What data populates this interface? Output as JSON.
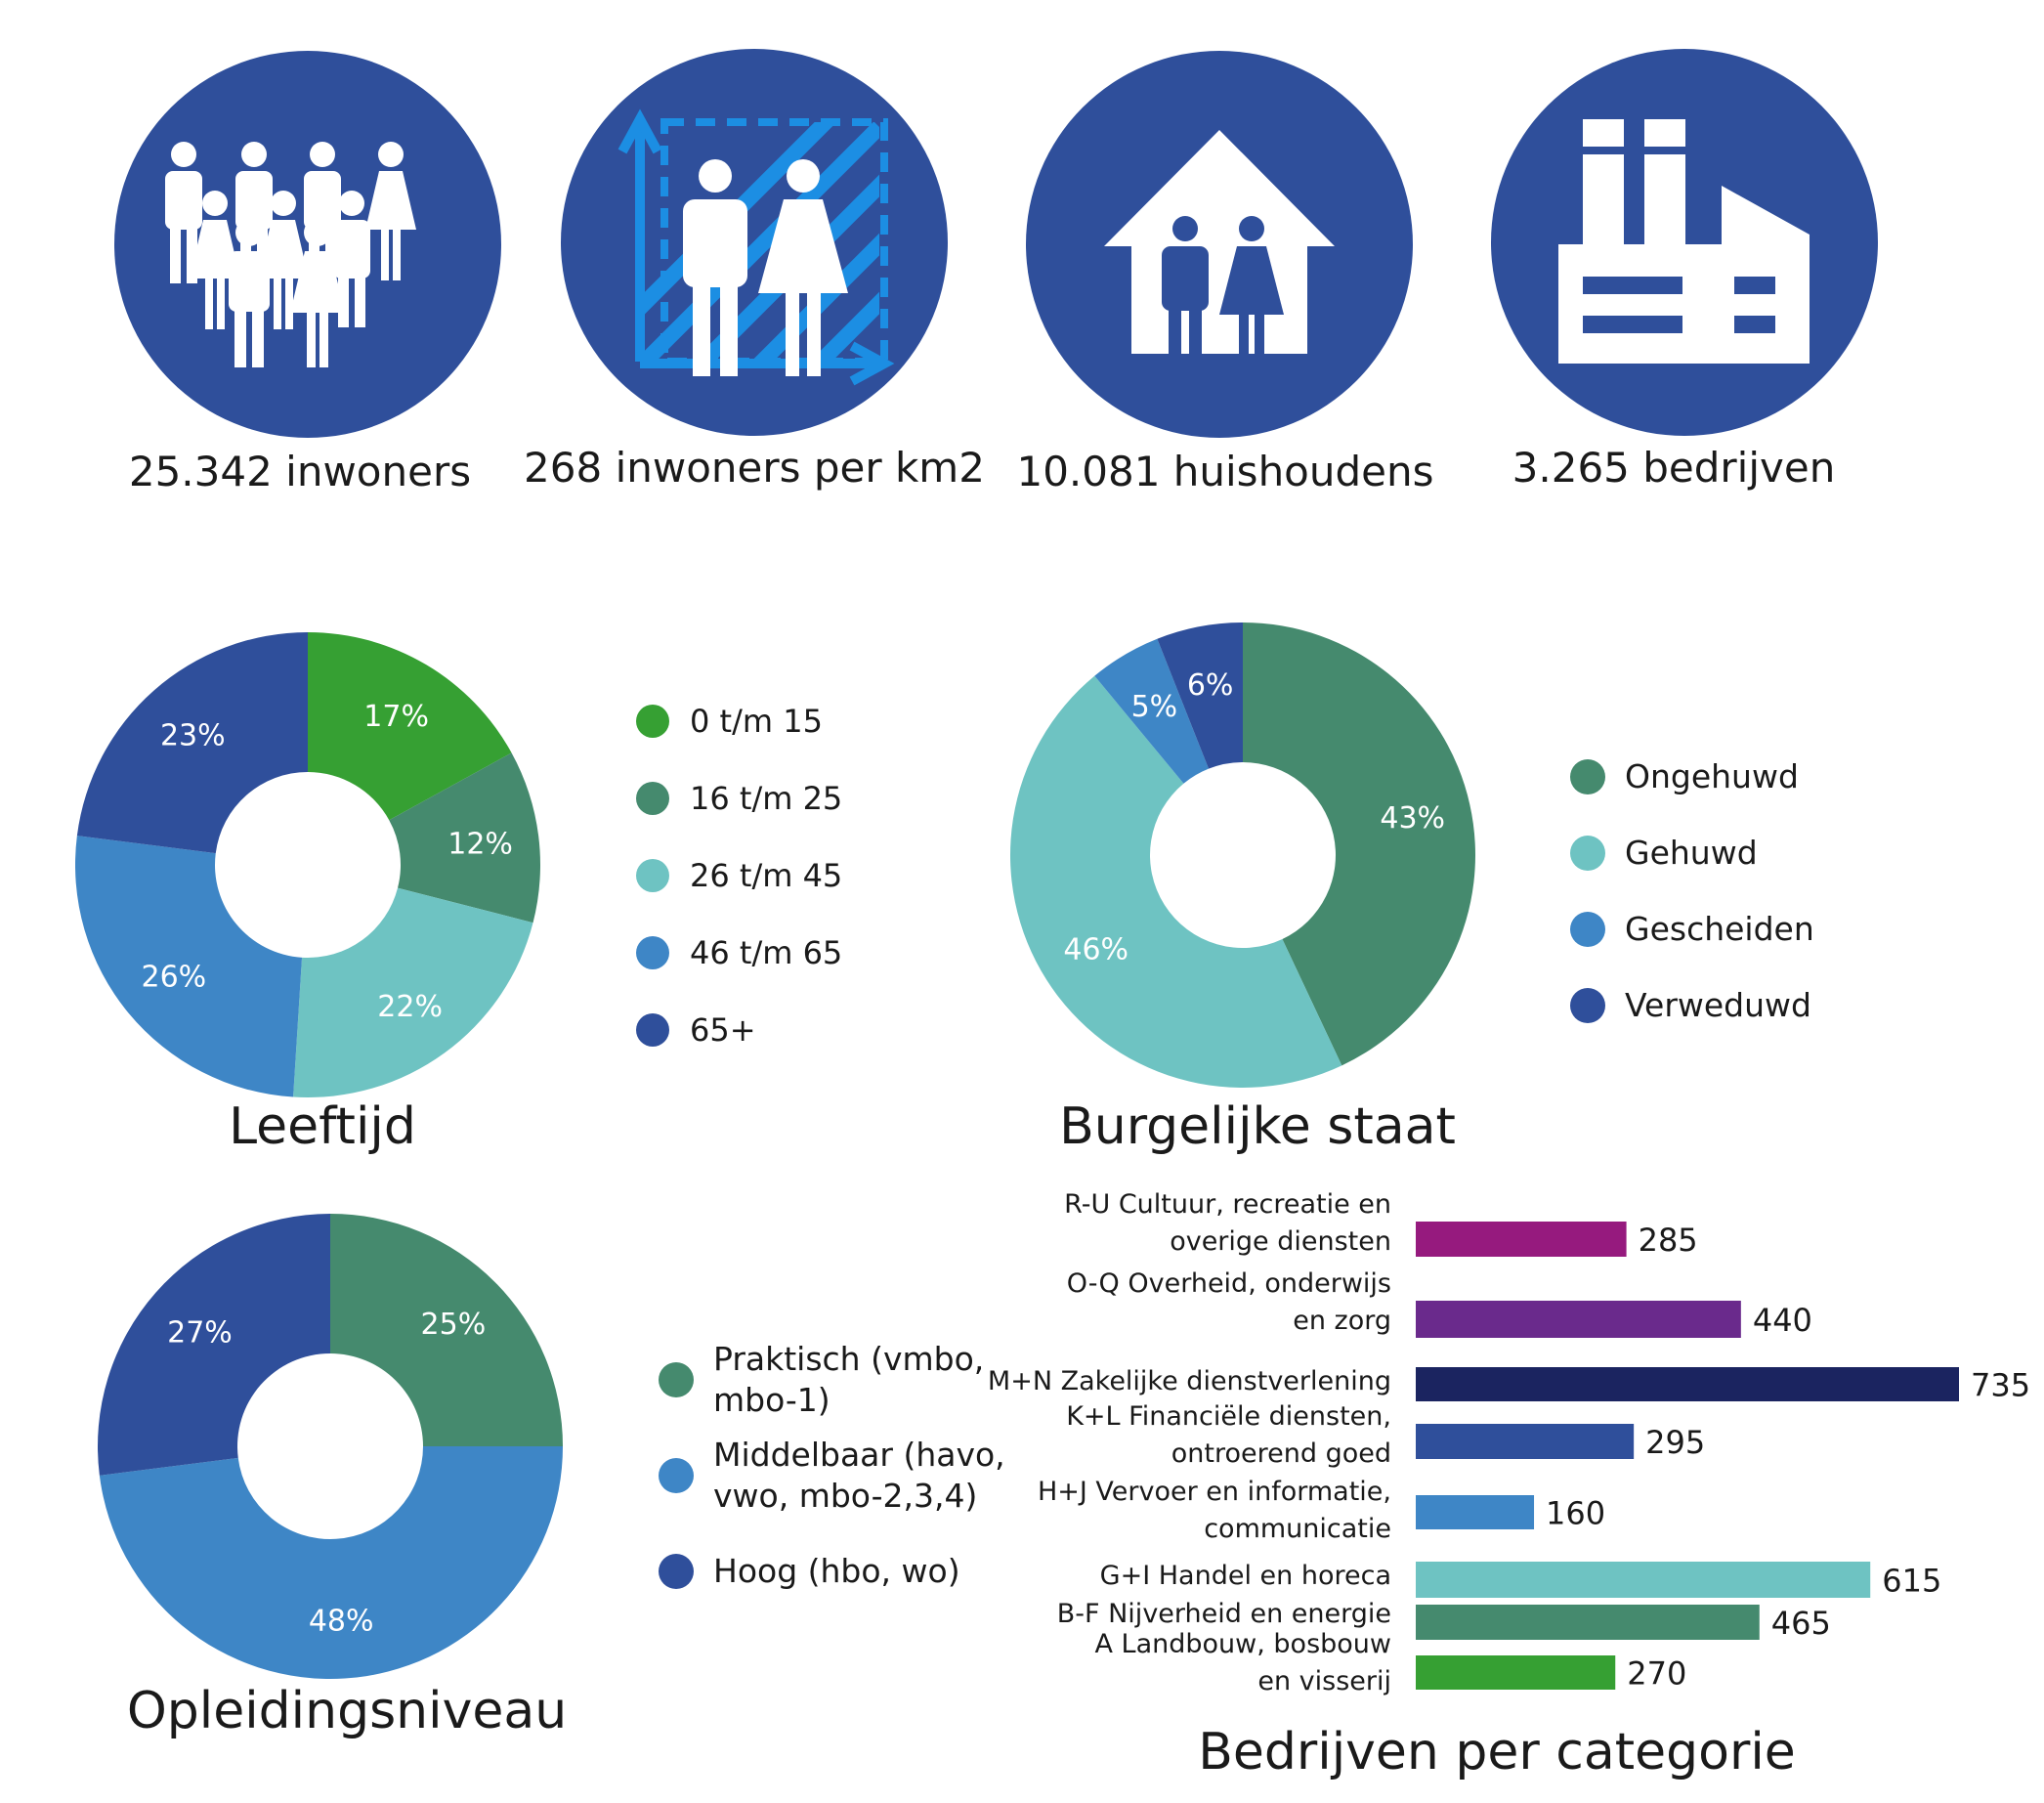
{
  "stats": [
    {
      "label": "25.342 inwoners",
      "icon": "crowd-icon"
    },
    {
      "label": "268 inwoners per km2",
      "icon": "population-density-icon"
    },
    {
      "label": "10.081 huishoudens",
      "icon": "house-icon"
    },
    {
      "label": "3.265 bedrijven",
      "icon": "factory-icon"
    }
  ],
  "colors": {
    "circle": "#2f4f9b",
    "density_accent": "#1c8ee3",
    "white": "#ffffff"
  },
  "chart_data": [
    {
      "type": "pie",
      "title": "Leeftijd",
      "categories": [
        "0 t/m 15",
        "16 t/m 25",
        "26 t/m 45",
        "46 t/m 65",
        "65+"
      ],
      "values": [
        17,
        12,
        22,
        26,
        23
      ],
      "labels": [
        "17%",
        "12%",
        "22%",
        "26%",
        "23%"
      ],
      "colors": [
        "#36a033",
        "#458a6e",
        "#6ec3c2",
        "#3e86c6",
        "#2f4f9b"
      ]
    },
    {
      "type": "pie",
      "title": "Burgelijke staat",
      "categories": [
        "Ongehuwd",
        "Gehuwd",
        "Gescheiden",
        "Verweduwd"
      ],
      "values": [
        43,
        46,
        5,
        6
      ],
      "labels": [
        "43%",
        "46%",
        "5%",
        "6%"
      ],
      "colors": [
        "#458a6e",
        "#6ec3c2",
        "#3e86c6",
        "#2f4f9b"
      ]
    },
    {
      "type": "pie",
      "title": "Opleidingsniveau",
      "categories": [
        "Praktisch (vmbo, mbo-1)",
        "Middelbaar (havo, vwo, mbo-2,3,4)",
        "Hoog (hbo, wo)"
      ],
      "legend_lines": [
        [
          "Praktisch (vmbo,",
          "mbo-1)"
        ],
        [
          "Middelbaar (havo,",
          "vwo, mbo-2,3,4)"
        ],
        [
          "Hoog (hbo, wo)"
        ]
      ],
      "values": [
        25,
        48,
        27
      ],
      "labels": [
        "25%",
        "48%",
        "27%"
      ],
      "colors": [
        "#458a6e",
        "#3e86c6",
        "#2f4f9b"
      ]
    },
    {
      "type": "bar",
      "orientation": "horizontal",
      "title": "Bedrijven per categorie",
      "categories": [
        [
          "R-U Cultuur, recreatie en",
          "overige diensten"
        ],
        [
          "O-Q Overheid, onderwijs",
          "en zorg"
        ],
        [
          "M+N Zakelijke dienstverlening"
        ],
        [
          "K+L Financiële diensten,",
          "ontroerend goed"
        ],
        [
          "H+J Vervoer en informatie,",
          "communicatie"
        ],
        [
          "G+I Handel en horeca"
        ],
        [
          "B-F Nijverheid en energie"
        ],
        [
          "A Landbouw, bosbouw",
          "en visserij"
        ]
      ],
      "values": [
        285,
        440,
        735,
        295,
        160,
        615,
        465,
        270
      ],
      "value_labels": [
        "285",
        "440",
        "735",
        "295",
        "160",
        "615",
        "465",
        "270"
      ],
      "colors": [
        "#961a7e",
        "#6a2a8c",
        "#1b2460",
        "#2f4f9b",
        "#3e86c6",
        "#6ec3c2",
        "#458a6e",
        "#36a033"
      ],
      "xlim": [
        0,
        735
      ]
    }
  ]
}
